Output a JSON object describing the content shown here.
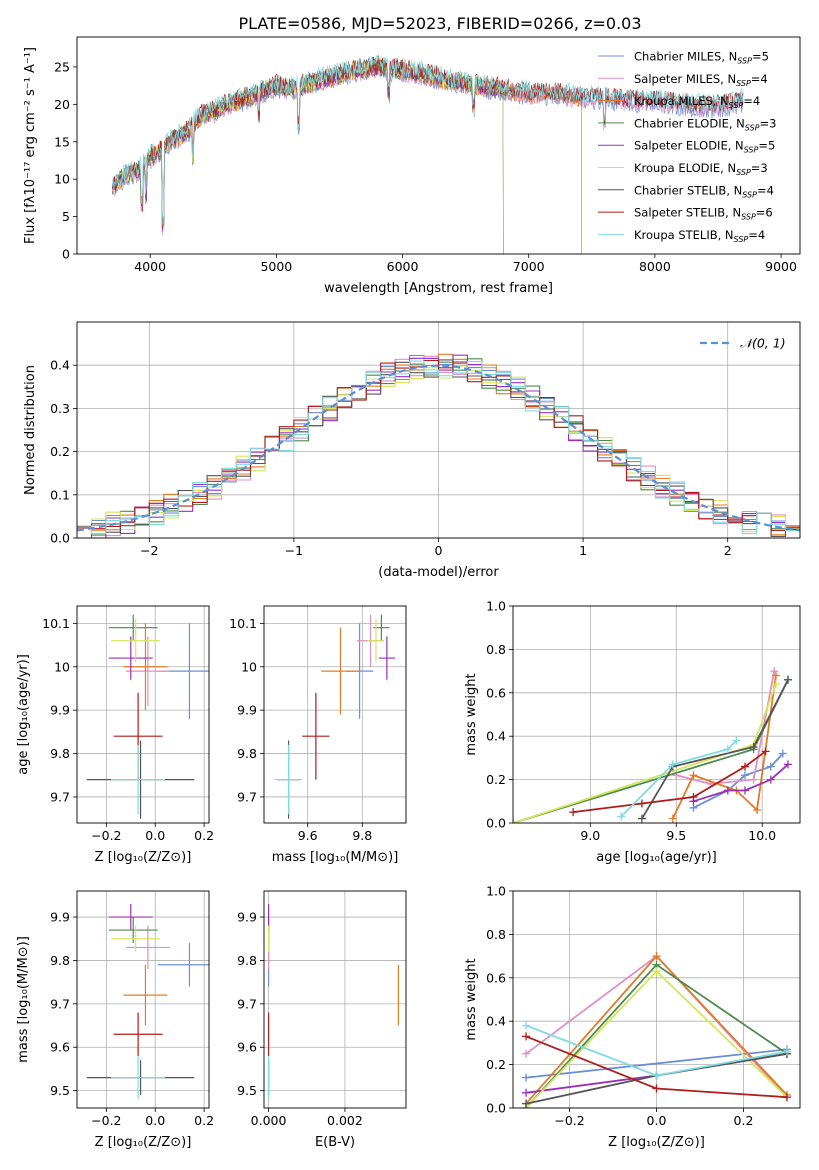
{
  "page_title": "PLATE=0586, MJD=52023, FIBERID=0266, z=0.03",
  "colors": [
    "#6a8fd6",
    "#e28fc3",
    "#e07b28",
    "#4f8a4f",
    "#9b30b8",
    "#d4e65c",
    "#555555",
    "#b01c1c",
    "#80dbe0"
  ],
  "chart_data": [
    {
      "id": "spectrum",
      "type": "line",
      "title": "PLATE=0586, MJD=52023, FIBERID=0266, z=0.03",
      "xlabel": "wavelength [Angstrom, rest frame]",
      "ylabel": "Flux [fλ10⁻¹⁷ erg cm⁻² s⁻¹ A⁻¹]",
      "xlim": [
        3420,
        9150
      ],
      "ylim": [
        0,
        29
      ],
      "xticks": [
        4000,
        5000,
        6000,
        7000,
        8000,
        9000
      ],
      "yticks": [
        0,
        5,
        10,
        15,
        20,
        25
      ],
      "legend_position": "top-right",
      "continuum": [
        [
          3700,
          9
        ],
        [
          3800,
          10.5
        ],
        [
          3900,
          11
        ],
        [
          4000,
          13
        ],
        [
          4100,
          14
        ],
        [
          4200,
          15.5
        ],
        [
          4300,
          16.5
        ],
        [
          4400,
          18.5
        ],
        [
          4500,
          19
        ],
        [
          4600,
          20
        ],
        [
          4800,
          21
        ],
        [
          5000,
          22.5
        ],
        [
          5100,
          22
        ],
        [
          5200,
          22.5
        ],
        [
          5400,
          23.5
        ],
        [
          5600,
          24.5
        ],
        [
          5800,
          25
        ],
        [
          6000,
          24.5
        ],
        [
          6200,
          24
        ],
        [
          6400,
          23
        ],
        [
          6600,
          22.5
        ],
        [
          6800,
          22
        ],
        [
          7000,
          21.5
        ],
        [
          7200,
          21.5
        ],
        [
          7400,
          21
        ],
        [
          7600,
          20.8
        ],
        [
          7800,
          20.5
        ],
        [
          8000,
          20.5
        ],
        [
          8200,
          20
        ],
        [
          8400,
          19.8
        ],
        [
          8600,
          20
        ],
        [
          8700,
          20.5
        ]
      ],
      "series": [
        {
          "name": "Chabrier MILES, N$_{SSP}$=5",
          "label": "Chabrier MILES, N",
          "sub": "SSP",
          "suffix": "=5",
          "xmax": 8700
        },
        {
          "name": "Salpeter MILES, N$_{SSP}$=4",
          "label": "Salpeter MILES, N",
          "sub": "SSP",
          "suffix": "=4",
          "xmax": 8700
        },
        {
          "name": "Kroupa MILES, N$_{SSP}$=4",
          "label": "Kroupa MILES, N",
          "sub": "SSP",
          "suffix": "=4",
          "xmax": 7420
        },
        {
          "name": "Chabrier ELODIE, N$_{SSP}$=3",
          "label": "Chabrier ELODIE, N",
          "sub": "SSP",
          "suffix": "=3",
          "xmax": 6800
        },
        {
          "name": "Salpeter ELODIE, N$_{SSP}$=5",
          "label": "Salpeter ELODIE, N",
          "sub": "SSP",
          "suffix": "=5",
          "xmax": 6800
        },
        {
          "name": "Kroupa ELODIE, N$_{SSP}$=3",
          "label": "Kroupa ELODIE, N",
          "sub": "SSP",
          "suffix": "=3",
          "xmax": 6800
        },
        {
          "name": "Chabrier STELIB, N$_{SSP}$=4",
          "label": "Chabrier STELIB, N",
          "sub": "SSP",
          "suffix": "=4",
          "xmax": 8700
        },
        {
          "name": "Salpeter STELIB, N$_{SSP}$=6",
          "label": "Salpeter STELIB, N",
          "sub": "SSP",
          "suffix": "=6",
          "xmax": 8700
        },
        {
          "name": "Kroupa STELIB, N$_{SSP}$=4",
          "label": "Kroupa STELIB, N",
          "sub": "SSP",
          "suffix": "=4",
          "xmax": 8700
        }
      ]
    },
    {
      "id": "residuals",
      "type": "bar",
      "xlabel": "(data-model)/error",
      "ylabel": "Normed distribution",
      "xlim": [
        -2.5,
        2.5
      ],
      "ylim": [
        0,
        0.5
      ],
      "xticks": [
        -2,
        -1,
        0,
        1,
        2
      ],
      "xtick_labels": [
        "−2",
        "−1",
        "0",
        "1",
        "2"
      ],
      "yticks": [
        0,
        0.1,
        0.2,
        0.3,
        0.4
      ],
      "bin_width": 0.1,
      "legend": "𝒩(0, 1)",
      "reference_curve": {
        "name": "N(0,1)",
        "mean": 0,
        "sigma": 1
      }
    },
    {
      "id": "age_vs_Z",
      "type": "scatter",
      "xlabel": "Z [log₁₀(Z/Z⊙)]",
      "ylabel": "age  [log₁₀(age/yr)]",
      "xlim": [
        -0.32,
        0.22
      ],
      "ylim": [
        9.64,
        10.14
      ],
      "xticks": [
        -0.2,
        0,
        0.2
      ],
      "xtick_labels": [
        "−0.2",
        "0.0",
        "0.2"
      ],
      "yticks": [
        9.7,
        9.8,
        9.9,
        10.0,
        10.1
      ],
      "points": [
        {
          "x": 0.14,
          "y": 9.99,
          "xerr": 0.13,
          "yerr": 0.11
        },
        {
          "x": -0.03,
          "y": 9.99,
          "xerr": 0.09,
          "yerr": 0.08
        },
        {
          "x": -0.04,
          "y": 10.0,
          "xerr": 0.09,
          "yerr": 0.1
        },
        {
          "x": -0.09,
          "y": 10.09,
          "xerr": 0.1,
          "yerr": 0.03
        },
        {
          "x": -0.1,
          "y": 10.02,
          "xerr": 0.09,
          "yerr": 0.05
        },
        {
          "x": -0.08,
          "y": 10.06,
          "xerr": 0.1,
          "yerr": 0.05
        },
        {
          "x": -0.06,
          "y": 9.74,
          "xerr": 0.22,
          "yerr": 0.09
        },
        {
          "x": -0.07,
          "y": 9.84,
          "xerr": 0.1,
          "yerr": 0.1
        },
        {
          "x": -0.07,
          "y": 9.74,
          "xerr": 0.11,
          "yerr": 0.08
        }
      ]
    },
    {
      "id": "age_vs_mass",
      "type": "scatter",
      "xlabel": "mass [log₁₀(M/M⊙)]",
      "xlim": [
        9.44,
        9.96
      ],
      "ylim": [
        9.64,
        10.14
      ],
      "xticks": [
        9.6,
        9.8
      ],
      "xtick_labels": [
        "9.6",
        "9.8"
      ],
      "yticks": [
        9.7,
        9.8,
        9.9,
        10.0,
        10.1
      ],
      "points": [
        {
          "x": 9.79,
          "y": 9.99,
          "xerr": 0.05,
          "yerr": 0.11
        },
        {
          "x": 9.83,
          "y": 10.06,
          "xerr": 0.05,
          "yerr": 0.06
        },
        {
          "x": 9.72,
          "y": 9.99,
          "xerr": 0.07,
          "yerr": 0.1
        },
        {
          "x": 9.87,
          "y": 10.09,
          "xerr": 0.03,
          "yerr": 0.03
        },
        {
          "x": 9.89,
          "y": 10.02,
          "xerr": 0.03,
          "yerr": 0.05
        },
        {
          "x": 9.85,
          "y": 10.06,
          "xerr": 0.03,
          "yerr": 0.05
        },
        {
          "x": 9.53,
          "y": 9.74,
          "xerr": 0.04,
          "yerr": 0.09
        },
        {
          "x": 9.63,
          "y": 9.84,
          "xerr": 0.05,
          "yerr": 0.1
        },
        {
          "x": 9.53,
          "y": 9.74,
          "xerr": 0.05,
          "yerr": 0.08
        }
      ]
    },
    {
      "id": "weight_vs_age",
      "type": "line",
      "xlabel": "age  [log₁₀(age/yr)]",
      "ylabel": "mass weight",
      "xlim": [
        8.55,
        10.22
      ],
      "ylim": [
        0,
        1.0
      ],
      "xticks": [
        9.0,
        9.5,
        10.0
      ],
      "xtick_labels": [
        "9.0",
        "9.5",
        "10.0"
      ],
      "yticks": [
        0,
        0.2,
        0.4,
        0.6,
        0.8,
        1.0
      ],
      "series": [
        {
          "values": [
            [
              9.6,
              0.07
            ],
            [
              9.8,
              0.15
            ],
            [
              9.9,
              0.22
            ],
            [
              10.05,
              0.26
            ],
            [
              10.12,
              0.32
            ]
          ]
        },
        {
          "values": [
            [
              9.5,
              0.22
            ],
            [
              9.7,
              0.18
            ],
            [
              9.95,
              0.2
            ],
            [
              10.07,
              0.7
            ]
          ]
        },
        {
          "values": [
            [
              9.48,
              0.02
            ],
            [
              9.6,
              0.22
            ],
            [
              9.85,
              0.15
            ],
            [
              9.97,
              0.06
            ],
            [
              10.08,
              0.68
            ]
          ]
        },
        {
          "values": [
            [
              8.55,
              0.0
            ],
            [
              9.95,
              0.34
            ],
            [
              10.15,
              0.66
            ]
          ]
        },
        {
          "values": [
            [
              9.6,
              0.1
            ],
            [
              9.8,
              0.15
            ],
            [
              9.9,
              0.15
            ],
            [
              10.05,
              0.2
            ],
            [
              10.15,
              0.27
            ]
          ]
        },
        {
          "values": [
            [
              8.55,
              0.0
            ],
            [
              9.95,
              0.36
            ],
            [
              10.08,
              0.64
            ]
          ]
        },
        {
          "values": [
            [
              9.3,
              0.02
            ],
            [
              9.48,
              0.26
            ],
            [
              9.95,
              0.35
            ],
            [
              10.15,
              0.66
            ]
          ]
        },
        {
          "values": [
            [
              8.9,
              0.05
            ],
            [
              9.3,
              0.09
            ],
            [
              9.6,
              0.12
            ],
            [
              9.9,
              0.26
            ],
            [
              10.02,
              0.33
            ]
          ]
        },
        {
          "values": [
            [
              9.18,
              0.03
            ],
            [
              9.48,
              0.27
            ],
            [
              9.8,
              0.34
            ],
            [
              9.85,
              0.38
            ]
          ]
        }
      ]
    },
    {
      "id": "mass_vs_Z",
      "type": "scatter",
      "xlabel": "Z [log₁₀(Z/Z⊙)]",
      "ylabel": "mass [log₁₀(M/M⊙)]",
      "xlim": [
        -0.32,
        0.22
      ],
      "ylim": [
        9.46,
        9.96
      ],
      "xticks": [
        -0.2,
        0,
        0.2
      ],
      "xtick_labels": [
        "−0.2",
        "0.0",
        "0.2"
      ],
      "yticks": [
        9.5,
        9.6,
        9.7,
        9.8,
        9.9
      ],
      "points": [
        {
          "x": 0.14,
          "y": 9.79,
          "xerr": 0.13,
          "yerr": 0.05
        },
        {
          "x": -0.03,
          "y": 9.83,
          "xerr": 0.09,
          "yerr": 0.05
        },
        {
          "x": -0.04,
          "y": 9.72,
          "xerr": 0.09,
          "yerr": 0.07
        },
        {
          "x": -0.09,
          "y": 9.87,
          "xerr": 0.1,
          "yerr": 0.03
        },
        {
          "x": -0.1,
          "y": 9.9,
          "xerr": 0.09,
          "yerr": 0.03
        },
        {
          "x": -0.08,
          "y": 9.85,
          "xerr": 0.1,
          "yerr": 0.03
        },
        {
          "x": -0.06,
          "y": 9.53,
          "xerr": 0.22,
          "yerr": 0.04
        },
        {
          "x": -0.07,
          "y": 9.63,
          "xerr": 0.1,
          "yerr": 0.05
        },
        {
          "x": -0.07,
          "y": 9.53,
          "xerr": 0.11,
          "yerr": 0.05
        }
      ]
    },
    {
      "id": "mass_vs_ebv",
      "type": "scatter",
      "xlabel": "E(B-V)",
      "xlim": [
        -0.00012,
        0.0036
      ],
      "ylim": [
        9.46,
        9.96
      ],
      "xticks": [
        0,
        0.002
      ],
      "xtick_labels": [
        "0.000",
        "0.002"
      ],
      "yticks": [
        9.5,
        9.6,
        9.7,
        9.8,
        9.9
      ],
      "points": [
        {
          "x": 0,
          "y": 9.79,
          "xerr": 0,
          "yerr": 0.05
        },
        {
          "x": 0,
          "y": 9.83,
          "xerr": 0,
          "yerr": 0.05
        },
        {
          "x": 0.0034,
          "y": 9.72,
          "xerr": 0,
          "yerr": 0.07
        },
        {
          "x": 0,
          "y": 9.87,
          "xerr": 0,
          "yerr": 0.03
        },
        {
          "x": 0,
          "y": 9.9,
          "xerr": 0,
          "yerr": 0.03
        },
        {
          "x": 0,
          "y": 9.85,
          "xerr": 0,
          "yerr": 0.03
        },
        {
          "x": 0,
          "y": 9.53,
          "xerr": 0,
          "yerr": 0.04
        },
        {
          "x": 0,
          "y": 9.63,
          "xerr": 0,
          "yerr": 0.05
        },
        {
          "x": 0,
          "y": 9.53,
          "xerr": 0,
          "yerr": 0.05
        }
      ]
    },
    {
      "id": "weight_vs_Z",
      "type": "line",
      "xlabel": "Z [log₁₀(Z/Z⊙)]",
      "ylabel": "mass weight",
      "xlim": [
        -0.33,
        0.33
      ],
      "ylim": [
        0,
        1.0
      ],
      "xticks": [
        -0.2,
        0,
        0.2
      ],
      "xtick_labels": [
        "−0.2",
        "0.0",
        "0.2"
      ],
      "yticks": [
        0,
        0.2,
        0.4,
        0.6,
        0.8,
        1.0
      ],
      "series": [
        {
          "values": [
            [
              -0.3,
              0.14
            ],
            [
              0.3,
              0.27
            ]
          ]
        },
        {
          "values": [
            [
              -0.3,
              0.25
            ],
            [
              0.0,
              0.7
            ],
            [
              0.3,
              0.05
            ]
          ]
        },
        {
          "values": [
            [
              -0.3,
              0.02
            ],
            [
              0.0,
              0.7
            ],
            [
              0.3,
              0.06
            ]
          ]
        },
        {
          "values": [
            [
              -0.3,
              0.0
            ],
            [
              0.0,
              0.66
            ],
            [
              0.3,
              0.25
            ]
          ]
        },
        {
          "values": [
            [
              -0.3,
              0.07
            ],
            [
              0.0,
              0.15
            ],
            [
              0.3,
              0.25
            ]
          ]
        },
        {
          "values": [
            [
              -0.3,
              0.0
            ],
            [
              0.0,
              0.63
            ],
            [
              0.3,
              0.05
            ]
          ]
        },
        {
          "values": [
            [
              -0.3,
              0.02
            ],
            [
              0.0,
              0.15
            ],
            [
              0.3,
              0.25
            ]
          ]
        },
        {
          "values": [
            [
              -0.3,
              0.33
            ],
            [
              0.0,
              0.09
            ],
            [
              0.3,
              0.05
            ]
          ]
        },
        {
          "values": [
            [
              -0.3,
              0.38
            ],
            [
              0.0,
              0.15
            ],
            [
              0.3,
              0.26
            ]
          ]
        }
      ]
    }
  ]
}
